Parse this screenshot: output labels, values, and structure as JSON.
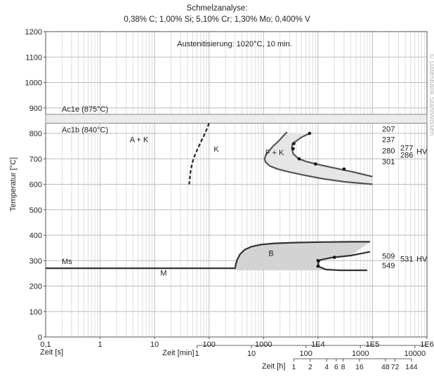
{
  "chart_data": {
    "type": "line",
    "title": "Schmelzanalyse:",
    "subtitle": "0,38% C; 1,00% Si; 5,10% Cr; 1,30% Mo; 0,400% V",
    "annotation_austenitize": "Austenitisierung: 1020°C, 10 min.",
    "watermark": "© Datenbank StahlWissen",
    "ylabel": "Temperatur [°C]",
    "y_ticks": [
      0,
      100,
      200,
      300,
      400,
      500,
      600,
      700,
      800,
      900,
      1000,
      1100,
      1200
    ],
    "y_tick_labels": [
      "0",
      "100",
      "200",
      "300",
      "400",
      "500",
      "600",
      "700",
      "800",
      "900",
      "1000",
      "1100",
      "1200"
    ],
    "ylim": [
      0,
      1200
    ],
    "x_scale": "log",
    "xlim_seconds": [
      0.1,
      1000000
    ],
    "grid": true,
    "axis_seconds": {
      "label": "Zeit [s]",
      "ticks": [
        1,
        10,
        100,
        1000,
        10000,
        100000,
        1000000
      ],
      "tick_labels": [
        "1",
        "10",
        "100",
        "1000",
        "1E4",
        "1E5",
        "1E6"
      ],
      "origin_label": "0,1"
    },
    "axis_minutes": {
      "label": "Zeit [min]",
      "ticks": [
        1,
        10,
        100,
        1000,
        10000
      ],
      "tick_labels": [
        "1",
        "10",
        "100",
        "1000",
        "10000"
      ]
    },
    "axis_hours": {
      "label": "Zeit [h]",
      "ticks": [
        1,
        2,
        4,
        6,
        8,
        16,
        48,
        72,
        144
      ],
      "tick_labels": [
        "1",
        "2",
        "4",
        "6",
        "8",
        "16",
        "48",
        "72",
        "144"
      ]
    },
    "phase_labels": [
      "A + K",
      "K",
      "F + K",
      "B",
      "M"
    ],
    "reference_lines": [
      {
        "label": "Ac1e (875°C)",
        "value": 875
      },
      {
        "label": "Ac1b (840°C)",
        "value": 840
      },
      {
        "label": "Ms",
        "value": 270
      }
    ],
    "hardness_unit": "HV",
    "hardness_upper": [
      "207",
      "237",
      "277",
      "280",
      "286",
      "301"
    ],
    "hardness_lower": [
      "509",
      "531",
      "549"
    ],
    "cooling_curves": [
      {
        "x": [
          300,
          330,
          350,
          400,
          450
        ],
        "y": [
          260,
          280,
          300,
          330,
          360
        ]
      },
      {
        "x": [
          3000,
          4000,
          5000,
          10000,
          30000,
          100000
        ],
        "y": [
          760,
          740,
          700,
          640,
          610,
          600
        ]
      },
      {
        "x": [
          10000,
          15000,
          30000,
          100000
        ],
        "y": [
          300,
          310,
          320,
          330
        ]
      }
    ],
    "series": [
      {
        "x": [
          100,
          90,
          80,
          70,
          62,
          55,
          50,
          47,
          45,
          44,
          43
        ],
        "y": [
          840,
          815,
          790,
          765,
          740,
          715,
          690,
          665,
          640,
          615,
          600
        ]
      },
      {
        "x": [
          2700,
          2300,
          1900,
          1500,
          1250,
          1100,
          1050,
          1080,
          1300,
          1800,
          3000,
          5500,
          12000,
          30000,
          100000
        ],
        "y": [
          805,
          790,
          770,
          750,
          730,
          715,
          700,
          688,
          672,
          660,
          648,
          636,
          622,
          610,
          600
        ]
      },
      {
        "x": [
          7000,
          5000,
          4000,
          3400,
          3300,
          3500,
          4400,
          6000,
          9000,
          18000,
          45000,
          100000
        ],
        "y": [
          800,
          785,
          770,
          760,
          742,
          720,
          700,
          690,
          680,
          666,
          648,
          630
        ]
      },
      {
        "x": [
          0.1,
          300,
          310,
          330,
          370,
          450,
          600,
          900,
          1600,
          4000,
          12000,
          40000,
          90000
        ],
        "y": [
          270,
          270,
          285,
          305,
          325,
          343,
          355,
          363,
          368,
          371,
          373,
          374,
          374
        ]
      },
      {
        "x": [
          90000,
          40000,
          18000,
          11000,
          10000,
          10500,
          14000,
          25000,
          60000,
          80000
        ],
        "y": [
          335,
          320,
          312,
          303,
          290,
          276,
          265,
          262,
          262,
          262
        ]
      }
    ],
    "transformation_points": [
      {
        "x": 7000,
        "y": 800
      },
      {
        "x": 3600,
        "y": 760
      },
      {
        "x": 3500,
        "y": 740
      },
      {
        "x": 4500,
        "y": 700
      },
      {
        "x": 9000,
        "y": 680
      },
      {
        "x": 30000,
        "y": 660
      },
      {
        "x": 10000,
        "y": 300
      },
      {
        "x": 20000,
        "y": 313
      },
      {
        "x": 10000,
        "y": 278
      }
    ]
  }
}
